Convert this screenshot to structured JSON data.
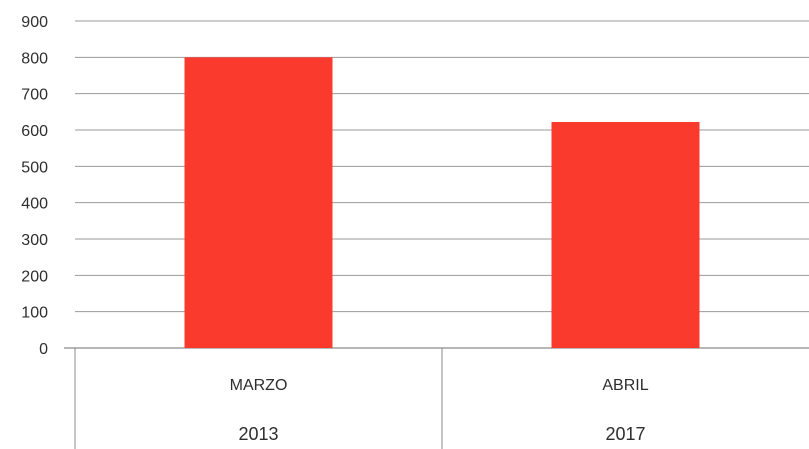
{
  "chart_data": {
    "type": "bar",
    "categories": [
      "MARZO",
      "ABRIL"
    ],
    "category_groups": [
      "2013",
      "2017"
    ],
    "values": [
      800,
      622
    ],
    "ylim": [
      0,
      900
    ],
    "y_ticks": [
      "0",
      "100",
      "200",
      "300",
      "400",
      "500",
      "600",
      "700",
      "800",
      "900"
    ],
    "grid": true,
    "legend": "none",
    "bar_color": "#f93a2c"
  }
}
